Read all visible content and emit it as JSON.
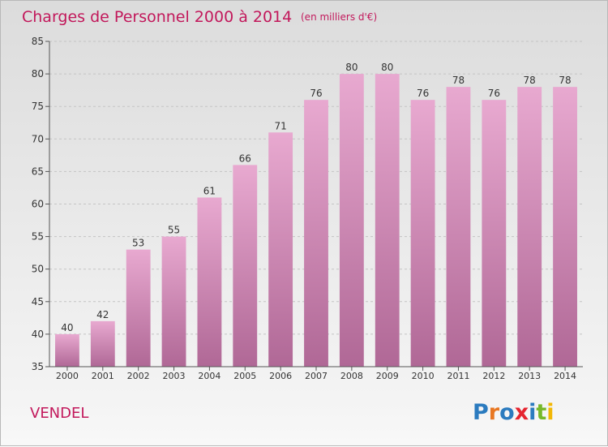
{
  "chart_data": {
    "type": "bar",
    "title": "Charges de Personnel 2000 à 2014",
    "subtitle": "(en milliers d'€)",
    "categories": [
      "2000",
      "2001",
      "2002",
      "2003",
      "2004",
      "2005",
      "2006",
      "2007",
      "2008",
      "2009",
      "2010",
      "2011",
      "2012",
      "2013",
      "2014"
    ],
    "values": [
      40,
      42,
      53,
      55,
      61,
      66,
      71,
      76,
      80,
      80,
      76,
      78,
      76,
      78,
      78
    ],
    "ylim": [
      35,
      85
    ],
    "yticks": [
      35,
      40,
      45,
      50,
      55,
      60,
      65,
      70,
      75,
      80,
      85
    ],
    "grid": true,
    "bar_color_top": "#e8a9d0",
    "bar_color_bottom": "#b06896",
    "title_color": "#c2185b"
  },
  "location_label": "VENDEL",
  "brand": {
    "name": "Proxiti",
    "letters": [
      {
        "ch": "P",
        "color": "#2b7bbf"
      },
      {
        "ch": "r",
        "color": "#e87722"
      },
      {
        "ch": "o",
        "color": "#2b7bbf"
      },
      {
        "ch": "x",
        "color": "#e5242f"
      },
      {
        "ch": "i",
        "color": "#2b7bbf"
      },
      {
        "ch": "t",
        "color": "#76b82a"
      },
      {
        "ch": "i",
        "color": "#f2b705"
      }
    ]
  }
}
